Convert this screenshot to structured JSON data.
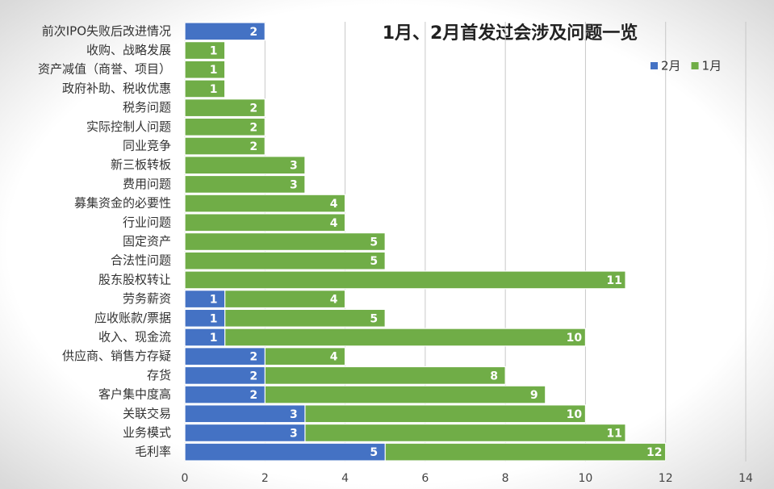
{
  "chart_data": {
    "type": "bar",
    "orientation": "horizontal",
    "overlap": true,
    "title": "1月、2月首发过会涉及问题一览",
    "categories": [
      "前次IPO失败后改进情况",
      "收购、战略发展",
      "资产减值（商誉、项目）",
      "政府补助、税收优惠",
      "税务问题",
      "实际控制人问题",
      "同业竞争",
      "新三板转板",
      "费用问题",
      "募集资金的必要性",
      "行业问题",
      "固定资产",
      "合法性问题",
      "股东股权转让",
      "劳务薪资",
      "应收账款/票据",
      "收入、现金流",
      "供应商、销售方存疑",
      "存货",
      "客户集中度高",
      "关联交易",
      "业务模式",
      "毛利率"
    ],
    "series": [
      {
        "name": "1月",
        "color": "#70ad47",
        "values": [
          0,
          1,
          1,
          1,
          2,
          2,
          2,
          3,
          3,
          4,
          4,
          5,
          5,
          11,
          4,
          5,
          10,
          4,
          8,
          9,
          10,
          11,
          12
        ]
      },
      {
        "name": "2月",
        "color": "#4472c4",
        "values": [
          2,
          null,
          null,
          null,
          null,
          null,
          null,
          null,
          null,
          null,
          null,
          null,
          null,
          null,
          1,
          1,
          1,
          2,
          2,
          2,
          3,
          3,
          5
        ]
      }
    ],
    "legend_order": [
      "2月",
      "1月"
    ],
    "xlim": [
      0,
      14
    ],
    "xticks": [
      0,
      2,
      4,
      6,
      8,
      10,
      12,
      14
    ],
    "grid": true,
    "legend": "upper right"
  }
}
